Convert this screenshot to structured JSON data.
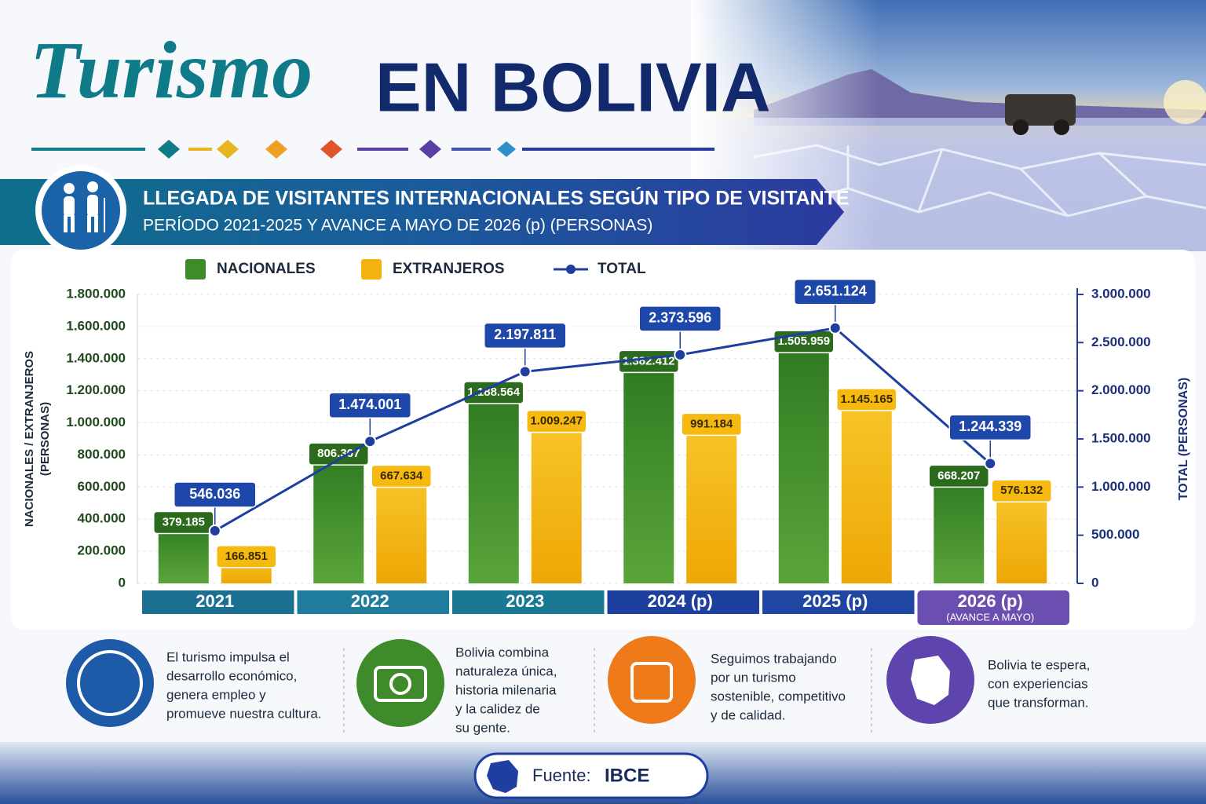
{
  "header": {
    "title_script": "Turismo",
    "title_bold": "EN BOLIVIA"
  },
  "chart_data": {
    "type": "bar",
    "title": "LLEGADA DE VISITANTES INTERNACIONALES SEGÚN TIPO DE VISITANTE",
    "subtitle": "PERÍODO 2021-2025 Y AVANCE A MAYO DE 2026 (p) (PERSONAS)",
    "categories": [
      "2021",
      "2022",
      "2023",
      "2024 (p)",
      "2025 (p)",
      "2026 (p)"
    ],
    "category_notes": [
      null,
      null,
      null,
      null,
      null,
      "(AVANCE A MAYO)"
    ],
    "ylabel": [
      "NACIONALES / EXTRANJEROS",
      "(PERSONAS)"
    ],
    "y2label": "TOTAL (PERSONAS)",
    "ylim": [
      0,
      1800000
    ],
    "yticks": [
      0,
      {
        "value": 200000,
        "label": "200.000"
      },
      {
        "value": 400000,
        "label": "400.000"
      },
      {
        "value": 600000,
        "label": "600.000"
      },
      {
        "value": 800000,
        "label": "800.000"
      },
      {
        "value": 1000000,
        "label": "1.000.000"
      },
      {
        "value": 1200000,
        "label": "1.200.000"
      },
      {
        "value": 1400000,
        "label": "1.400.000"
      },
      {
        "value": 1600000,
        "label": "1.600.000"
      },
      {
        "value": 1800000,
        "label": "1.800.000"
      }
    ],
    "y2lim": [
      0,
      3000000
    ],
    "y2ticks": [
      0,
      {
        "value": 500000,
        "label": "500.000"
      },
      {
        "value": 1000000,
        "label": "1.000.000"
      },
      {
        "value": 1500000,
        "label": "1.500.000"
      },
      {
        "value": 2000000,
        "label": "2.000.000"
      },
      {
        "value": 2500000,
        "label": "2.500.000"
      },
      {
        "value": 3000000,
        "label": "3.000.000"
      }
    ],
    "grid": true,
    "series": [
      {
        "name": "NACIONALES",
        "type": "bar",
        "color": "#3f8a2a",
        "values": [
          379185,
          806367,
          1188564,
          1382412,
          1505959,
          668207
        ],
        "value_labels": [
          "379.185",
          "806.367",
          "1.188.564",
          "1.382.412",
          "1.505.959",
          "668.207"
        ]
      },
      {
        "name": "EXTRANJEROS",
        "type": "bar",
        "color": "#f2b20f",
        "values": [
          166851,
          667634,
          1009247,
          991184,
          1145165,
          576132
        ],
        "value_labels": [
          "166.851",
          "667.634",
          "1.009.247",
          "991.184",
          "1.145.165",
          "576.132"
        ]
      },
      {
        "name": "TOTAL",
        "type": "line",
        "axis": "y2",
        "color": "#1e3fa0",
        "values": [
          546036,
          1474001,
          2197811,
          2373596,
          2651124,
          1244339
        ],
        "value_labels": [
          "546.036",
          "1.474.001",
          "2.197.811",
          "2.373.596",
          "2.651.124",
          "1.244.339"
        ]
      }
    ]
  },
  "notes": [
    {
      "lines": [
        "El turismo impulsa el",
        "desarrollo económico,",
        "genera empleo y",
        "promueve nuestra cultura."
      ]
    },
    {
      "lines": [
        "Bolivia combina",
        "naturaleza única,",
        "historia milenaria",
        "y la calidez de",
        "su gente."
      ]
    },
    {
      "lines": [
        "Seguimos trabajando",
        "por un turismo",
        "sostenible, competitivo",
        "y de calidad."
      ]
    },
    {
      "lines": [
        "Bolivia te espera,",
        "con experiencias",
        "que transforman."
      ]
    }
  ],
  "footer": {
    "label": "Fuente:",
    "source": "IBCE"
  }
}
